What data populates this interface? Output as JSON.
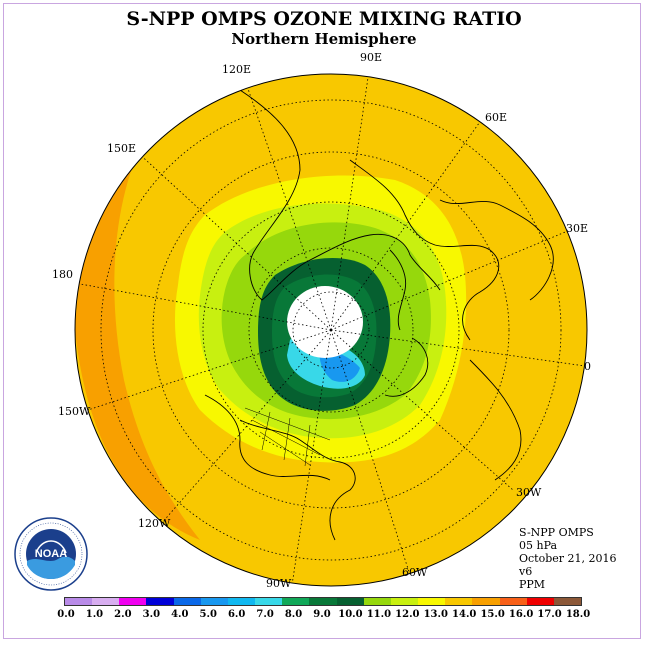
{
  "title": "S-NPP OMPS OZONE MIXING RATIO",
  "subtitle": "Northern Hemisphere",
  "longitude_labels": [
    "90E",
    "60E",
    "30E",
    "0",
    "30W",
    "60W",
    "90W",
    "120W",
    "150W",
    "180",
    "150E",
    "120E"
  ],
  "info": {
    "instrument": "S-NPP OMPS",
    "pressure": "05 hPa",
    "date": "October 21, 2016",
    "version": "v6",
    "units": "PPM"
  },
  "logo": {
    "text": "NOAA",
    "icon": "noaa-logo-icon"
  },
  "colorbar": {
    "ticks": [
      "0.0",
      "1.0",
      "2.0",
      "3.0",
      "4.0",
      "5.0",
      "6.0",
      "7.0",
      "8.0",
      "9.0",
      "10.0",
      "11.0",
      "12.0",
      "13.0",
      "14.0",
      "15.0",
      "16.0",
      "17.0",
      "18.0"
    ],
    "colors": [
      "#b98be8",
      "#d8aef0",
      "#f000f0",
      "#0000d8",
      "#0a68e8",
      "#1898f0",
      "#10b8f0",
      "#38d8e8",
      "#10a858",
      "#087838",
      "#066030",
      "#96d80c",
      "#c8f010",
      "#f8f800",
      "#f8c800",
      "#f8a000",
      "#f86018",
      "#f00000",
      "#8c5838"
    ]
  },
  "chart_data": {
    "type": "polar_map",
    "projection": "north polar stereographic",
    "variable": "ozone mixing ratio",
    "units": "PPM",
    "level": "05 hPa",
    "date": "October 21, 2016",
    "range": [
      0.0,
      18.0
    ],
    "contour_colors_by_value": {
      "13-14": "#f8c800",
      "12-13": "#f8f800",
      "11-12": "#c8f010",
      "10-11": "#96d80c",
      "9-10": "#066030",
      "8-9": "#087838",
      "7-8": "#38d8e8",
      "14-15": "#f8a000"
    },
    "missing_region": "pole (polar night, white)"
  }
}
